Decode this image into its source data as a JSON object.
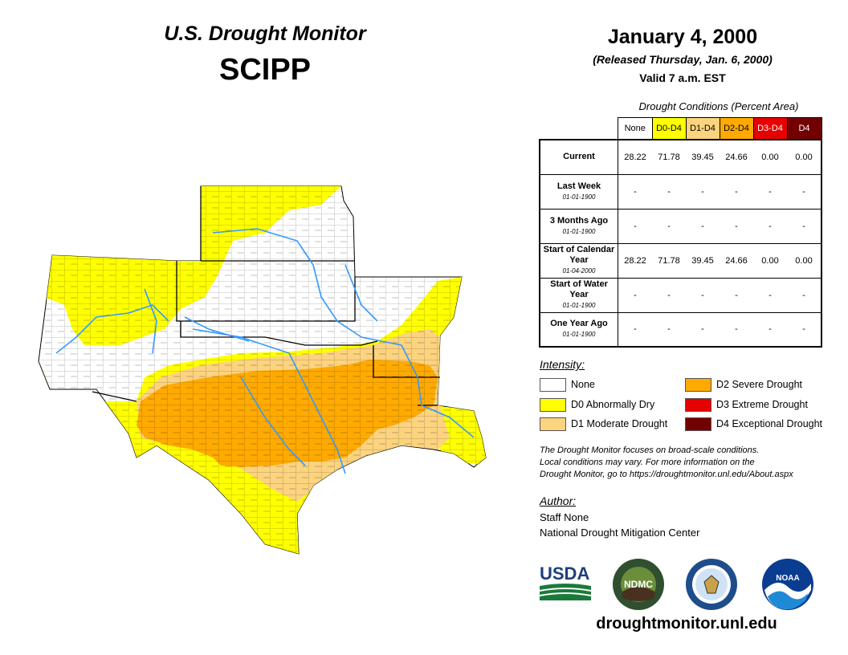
{
  "header": {
    "title": "U.S. Drought Monitor",
    "region": "SCIPP",
    "date": "January 4, 2000",
    "released": "(Released Thursday, Jan. 6, 2000)",
    "valid": "Valid 7 a.m. EST"
  },
  "conditions_table": {
    "caption": "Drought Conditions (Percent Area)",
    "columns": [
      "None",
      "D0-D4",
      "D1-D4",
      "D2-D4",
      "D3-D4",
      "D4"
    ],
    "rows": [
      {
        "label": "Current",
        "date": "",
        "values": [
          "28.22",
          "71.78",
          "39.45",
          "24.66",
          "0.00",
          "0.00"
        ]
      },
      {
        "label": "Last Week",
        "date": "01-01-1900",
        "values": [
          "-",
          "-",
          "-",
          "-",
          "-",
          "-"
        ]
      },
      {
        "label": "3 Months Ago",
        "date": "01-01-1900",
        "values": [
          "-",
          "-",
          "-",
          "-",
          "-",
          "-"
        ]
      },
      {
        "label": "Start of Calendar Year",
        "date": "01-04-2000",
        "values": [
          "28.22",
          "71.78",
          "39.45",
          "24.66",
          "0.00",
          "0.00"
        ]
      },
      {
        "label": "Start of Water Year",
        "date": "01-01-1900",
        "values": [
          "-",
          "-",
          "-",
          "-",
          "-",
          "-"
        ]
      },
      {
        "label": "One Year Ago",
        "date": "01-01-1900",
        "values": [
          "-",
          "-",
          "-",
          "-",
          "-",
          "-"
        ]
      }
    ]
  },
  "legend": {
    "title": "Intensity:",
    "items": [
      {
        "label": "None",
        "color": "#ffffff"
      },
      {
        "label": "D0 Abnormally Dry",
        "color": "#ffff00"
      },
      {
        "label": "D1 Moderate Drought",
        "color": "#fcd37f"
      },
      {
        "label": "D2 Severe Drought",
        "color": "#ffaa00"
      },
      {
        "label": "D3 Extreme Drought",
        "color": "#e60000"
      },
      {
        "label": "D4 Exceptional Drought",
        "color": "#730000"
      }
    ]
  },
  "header_colors": [
    "#ffffff",
    "#ffff00",
    "#fcd37f",
    "#ffaa00",
    "#e60000",
    "#730000"
  ],
  "header_text_colors": [
    "#000000",
    "#000000",
    "#000000",
    "#000000",
    "#ffffff",
    "#ffffff"
  ],
  "note": {
    "line1": "The Drought Monitor focuses on broad-scale conditions.",
    "line2": "Local conditions may vary. For more information on the",
    "line3": "Drought Monitor, go to https://droughtmonitor.unl.edu/About.aspx"
  },
  "author": {
    "title": "Author:",
    "name": "Staff None",
    "org": "National Drought Mitigation Center"
  },
  "logos": {
    "usda": "USDA",
    "ndmc": "NDMC",
    "noaa": "NOAA"
  },
  "url": "droughtmonitor.unl.edu"
}
